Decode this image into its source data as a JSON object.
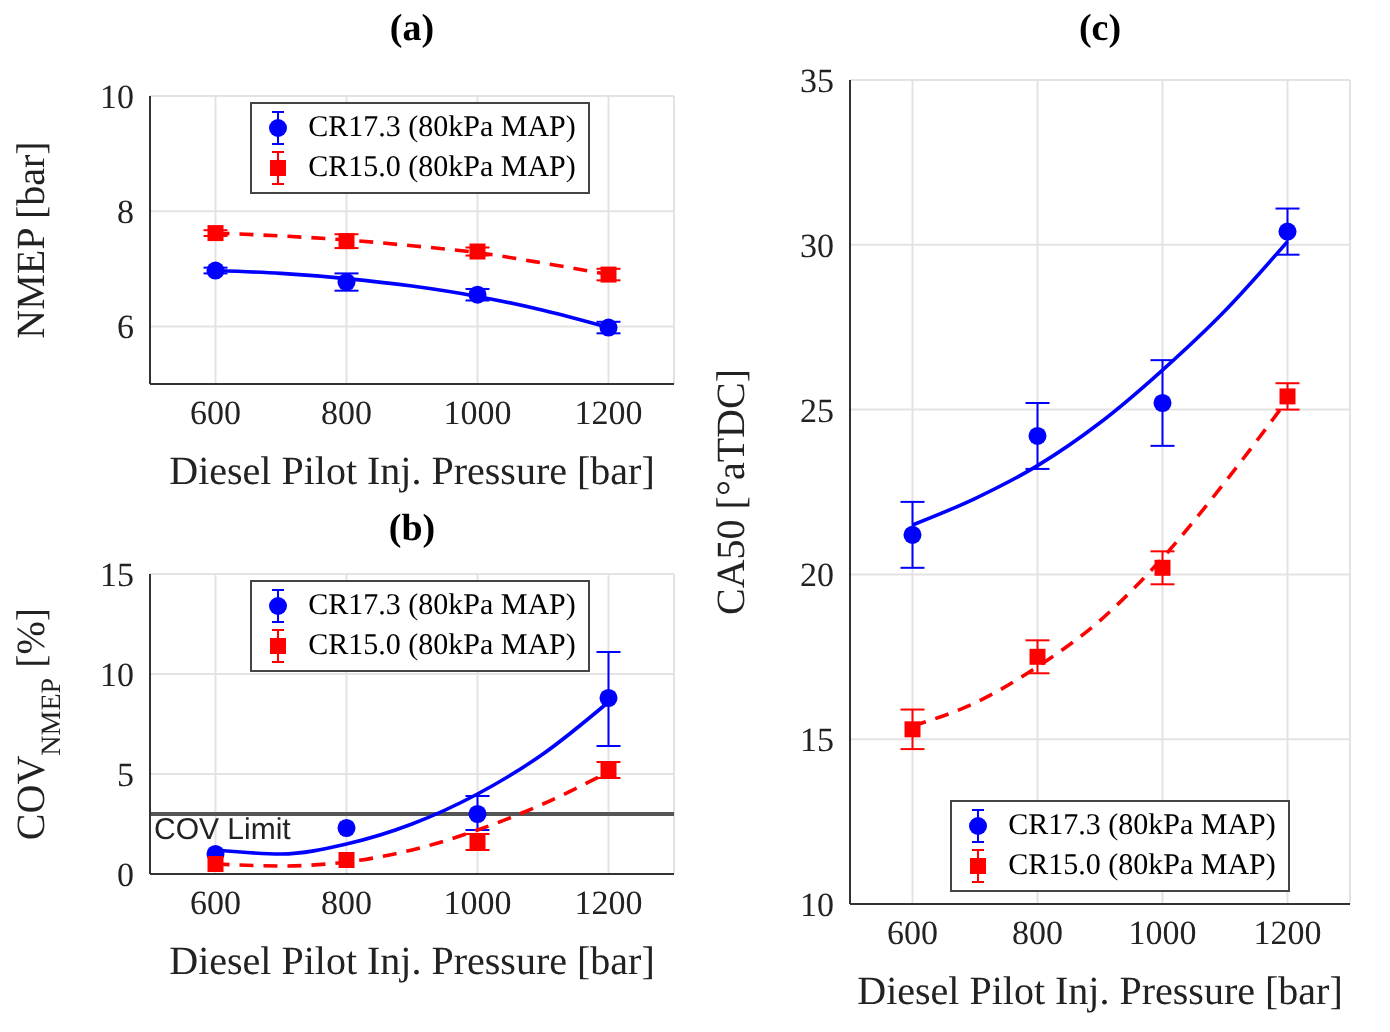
{
  "chart_data": [
    {
      "type": "scatter",
      "title": "(a)",
      "xlabel": "Diesel Pilot Inj. Pressure [bar]",
      "ylabel": "NMEP [bar]",
      "x": [
        600,
        800,
        1000,
        1200
      ],
      "xlim": [
        500,
        1300
      ],
      "xticks": [
        600,
        800,
        1000,
        1200
      ],
      "ylim": [
        5,
        10
      ],
      "yticks": [
        6,
        8,
        10
      ],
      "grid": true,
      "legend": "top",
      "series": [
        {
          "name": "CR17.3 (80kPa MAP)",
          "color": "#0000ff",
          "marker": "circle",
          "values": [
            6.97,
            6.77,
            6.55,
            5.98
          ],
          "errors": [
            [
              6.92,
              7.02
            ],
            [
              6.62,
              6.92
            ],
            [
              6.45,
              6.65
            ],
            [
              5.88,
              6.08
            ]
          ]
        },
        {
          "name": "CR15.0 (80kPa MAP)",
          "color": "#ff0000",
          "marker": "square",
          "values": [
            7.62,
            7.48,
            7.3,
            6.9
          ],
          "errors": [
            [
              7.57,
              7.67
            ],
            [
              7.36,
              7.6
            ],
            [
              7.23,
              7.37
            ],
            [
              6.8,
              7.0
            ]
          ]
        },
        {
          "type": "line",
          "color": "#0000ff",
          "line_style": "solid",
          "marker": "none",
          "x": [
            600,
            700,
            800,
            900,
            1000,
            1100,
            1200
          ],
          "values": [
            6.97,
            6.92,
            6.83,
            6.7,
            6.52,
            6.28,
            5.98
          ]
        },
        {
          "type": "line",
          "color": "#ff0000",
          "line_style": "dashed",
          "marker": "none",
          "x": [
            600,
            700,
            800,
            900,
            1000,
            1100,
            1200
          ],
          "values": [
            7.62,
            7.57,
            7.5,
            7.4,
            7.28,
            7.1,
            6.9
          ]
        }
      ]
    },
    {
      "type": "scatter",
      "title": "(b)",
      "xlabel": "Diesel Pilot Inj. Pressure [bar]",
      "ylabel": "COV$_{NMEP}$ [%]",
      "x": [
        600,
        800,
        1000,
        1200
      ],
      "xlim": [
        500,
        1300
      ],
      "xticks": [
        600,
        800,
        1000,
        1200
      ],
      "ylim": [
        0,
        15
      ],
      "yticks": [
        0,
        5,
        10,
        15
      ],
      "grid": true,
      "legend": "top",
      "ref_lines": [
        {
          "axis": "y",
          "value": 3,
          "label": "COV Limit",
          "color": "#555555"
        }
      ],
      "series": [
        {
          "name": "CR17.3 (80kPa MAP)",
          "color": "#0000ff",
          "marker": "circle",
          "values": [
            1.0,
            2.3,
            3.0,
            8.8
          ],
          "errors": [
            null,
            null,
            [
              2.2,
              3.9
            ],
            [
              6.4,
              11.1
            ]
          ]
        },
        {
          "name": "CR15.0 (80kPa MAP)",
          "color": "#ff0000",
          "marker": "square",
          "values": [
            0.5,
            0.7,
            1.6,
            5.2
          ],
          "errors": [
            null,
            null,
            [
              1.2,
              2.0
            ],
            [
              4.8,
              5.6
            ]
          ]
        },
        {
          "type": "line",
          "color": "#0000ff",
          "line_style": "solid",
          "marker": "none",
          "x": [
            600,
            700,
            800,
            900,
            1000,
            1100,
            1200
          ],
          "values": [
            1.2,
            1.0,
            1.5,
            2.5,
            4.0,
            6.0,
            8.6
          ]
        },
        {
          "type": "line",
          "color": "#ff0000",
          "line_style": "dashed",
          "marker": "none",
          "x": [
            600,
            700,
            800,
            900,
            1000,
            1100,
            1200
          ],
          "values": [
            0.5,
            0.4,
            0.6,
            1.2,
            2.2,
            3.5,
            5.1
          ]
        }
      ]
    },
    {
      "type": "scatter",
      "title": "(c)",
      "xlabel": "Diesel Pilot Inj. Pressure [bar]",
      "ylabel": "CA50 [°aTDC]",
      "x": [
        600,
        800,
        1000,
        1200
      ],
      "xlim": [
        500,
        1300
      ],
      "xticks": [
        600,
        800,
        1000,
        1200
      ],
      "ylim": [
        10,
        35
      ],
      "yticks": [
        10,
        15,
        20,
        25,
        30,
        35
      ],
      "grid": true,
      "legend": "bottom",
      "series": [
        {
          "name": "CR17.3 (80kPa MAP)",
          "color": "#0000ff",
          "marker": "circle",
          "values": [
            21.2,
            24.2,
            25.2,
            30.4
          ],
          "errors": [
            [
              20.2,
              22.2
            ],
            [
              23.2,
              25.2
            ],
            [
              23.9,
              26.5
            ],
            [
              29.7,
              31.1
            ]
          ]
        },
        {
          "name": "CR15.0 (80kPa MAP)",
          "color": "#ff0000",
          "marker": "square",
          "values": [
            15.3,
            17.5,
            20.2,
            25.4
          ],
          "errors": [
            [
              14.7,
              15.9
            ],
            [
              17.0,
              18.0
            ],
            [
              19.7,
              20.7
            ],
            [
              25.0,
              25.8
            ]
          ]
        },
        {
          "type": "line",
          "color": "#0000ff",
          "line_style": "solid",
          "marker": "none",
          "x": [
            600,
            700,
            800,
            900,
            1000,
            1100,
            1200
          ],
          "values": [
            21.5,
            22.3,
            23.3,
            24.6,
            26.2,
            28.0,
            30.1
          ]
        },
        {
          "type": "line",
          "color": "#ff0000",
          "line_style": "dashed",
          "marker": "none",
          "x": [
            600,
            700,
            800,
            900,
            1000,
            1100,
            1200
          ],
          "values": [
            15.4,
            16.1,
            17.2,
            18.6,
            20.5,
            22.8,
            25.3
          ]
        }
      ]
    }
  ]
}
